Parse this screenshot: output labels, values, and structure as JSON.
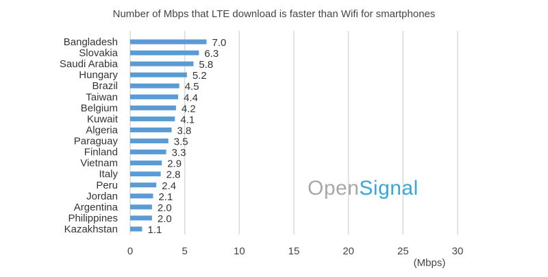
{
  "chart_data": {
    "type": "bar",
    "orientation": "horizontal",
    "title": "Number of Mbps that LTE download is faster than Wifi for smartphones",
    "xlabel": "(Mbps)",
    "ylabel": "",
    "categories": [
      "Bangladesh",
      "Slovakia",
      "Saudi Arabia",
      "Hungary",
      "Brazil",
      "Taiwan",
      "Belgium",
      "Kuwait",
      "Algeria",
      "Paraguay",
      "Finland",
      "Vietnam",
      "Italy",
      "Peru",
      "Jordan",
      "Argentina",
      "Philippines",
      "Kazakhstan"
    ],
    "values": [
      7.0,
      6.3,
      5.8,
      5.2,
      4.5,
      4.4,
      4.2,
      4.1,
      3.8,
      3.5,
      3.3,
      2.9,
      2.8,
      2.4,
      2.1,
      2.0,
      2.0,
      1.1
    ],
    "value_labels": [
      "7.0",
      "6.3",
      "5.8",
      "5.2",
      "4.5",
      "4.4",
      "4.2",
      "4.1",
      "3.8",
      "3.5",
      "3.3",
      "2.9",
      "2.8",
      "2.4",
      "2.1",
      "2.0",
      "2.0",
      "1.1"
    ],
    "xlim": [
      0,
      30
    ],
    "xticks": [
      "0",
      "5",
      "10",
      "15",
      "20",
      "25",
      "30"
    ],
    "grid": "vertical",
    "bar_color": "#5b9bd5",
    "grid_color": "#d9d9d9"
  },
  "logo": {
    "part1": "Open",
    "part2": "Signal"
  }
}
